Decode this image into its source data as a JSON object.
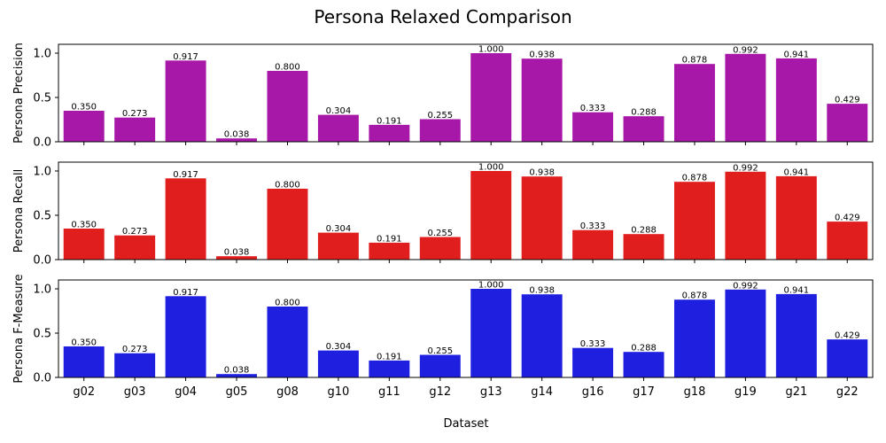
{
  "chart_data": {
    "type": "bar",
    "title": "Persona Relaxed Comparison",
    "xlabel": "Dataset",
    "categories": [
      "g02",
      "g03",
      "g04",
      "g05",
      "g08",
      "g10",
      "g11",
      "g12",
      "g13",
      "g14",
      "g16",
      "g17",
      "g18",
      "g19",
      "g21",
      "g22"
    ],
    "ylim": [
      0,
      1.1
    ],
    "yticks": [
      "0.0",
      "0.5",
      "1.0"
    ],
    "panels": [
      {
        "ylabel": "Persona Precision",
        "color": "#a818a8",
        "values": [
          0.35,
          0.273,
          0.917,
          0.038,
          0.8,
          0.304,
          0.191,
          0.255,
          1.0,
          0.938,
          0.333,
          0.288,
          0.878,
          0.992,
          0.941,
          0.429
        ],
        "labels": [
          "0.350",
          "0.273",
          "0.917",
          "0.038",
          "0.800",
          "0.304",
          "0.191",
          "0.255",
          "1.000",
          "0.938",
          "0.333",
          "0.288",
          "0.878",
          "0.992",
          "0.941",
          "0.429"
        ]
      },
      {
        "ylabel": "Persona Recall",
        "color": "#e01e1e",
        "values": [
          0.35,
          0.273,
          0.917,
          0.038,
          0.8,
          0.304,
          0.191,
          0.255,
          1.0,
          0.938,
          0.333,
          0.288,
          0.878,
          0.992,
          0.941,
          0.429
        ],
        "labels": [
          "0.350",
          "0.273",
          "0.917",
          "0.038",
          "0.800",
          "0.304",
          "0.191",
          "0.255",
          "1.000",
          "0.938",
          "0.333",
          "0.288",
          "0.878",
          "0.992",
          "0.941",
          "0.429"
        ]
      },
      {
        "ylabel": "Persona F-Measure",
        "color": "#1f1fe0",
        "values": [
          0.35,
          0.273,
          0.917,
          0.038,
          0.8,
          0.304,
          0.191,
          0.255,
          1.0,
          0.938,
          0.333,
          0.288,
          0.878,
          0.992,
          0.941,
          0.429
        ],
        "labels": [
          "0.350",
          "0.273",
          "0.917",
          "0.038",
          "0.800",
          "0.304",
          "0.191",
          "0.255",
          "1.000",
          "0.938",
          "0.333",
          "0.288",
          "0.878",
          "0.992",
          "0.941",
          "0.429"
        ]
      }
    ]
  }
}
